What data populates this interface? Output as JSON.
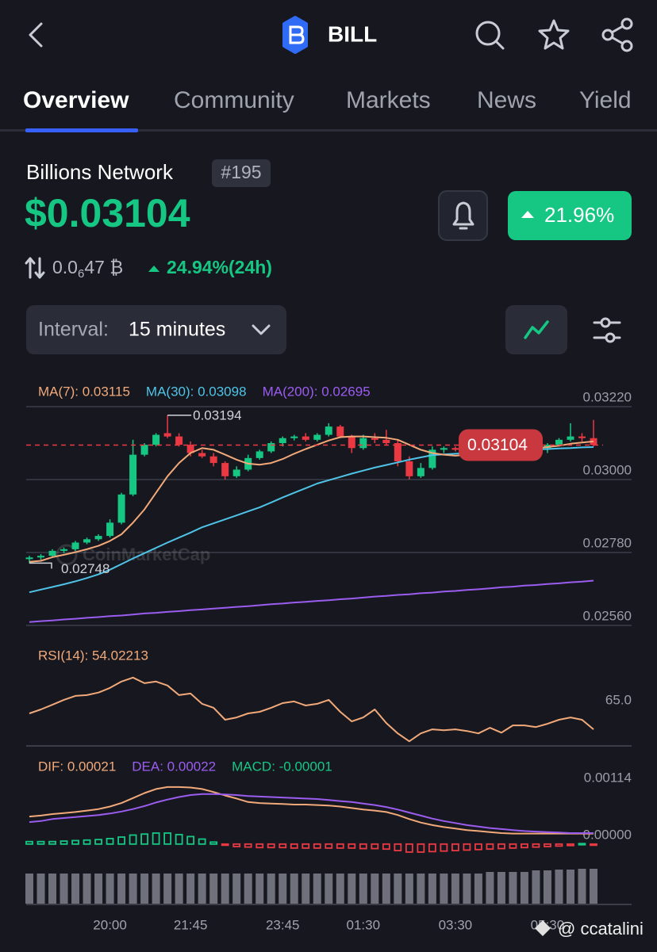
{
  "header": {
    "symbol": "BILL"
  },
  "tabs": [
    "Overview",
    "Community",
    "Markets",
    "News",
    "Yield"
  ],
  "coin": {
    "name": "Billions Network",
    "rank": "#195",
    "price": "$0.03104",
    "change_24h": "21.96%",
    "btc_price": {
      "lead": "0.0",
      "zero_count": "6",
      "tail": "47 ₿"
    },
    "btc_change": "24.94%(24h)"
  },
  "interval": {
    "label": "Interval:",
    "value": "15 minutes"
  },
  "watermark": "@ ccatalini",
  "chart_data": [
    {
      "type": "candlestick",
      "watermark": "CoinMarketCap",
      "up_color": "#16c784",
      "down_color": "#ea3943",
      "categories": [
        null,
        null,
        null,
        null,
        null,
        null,
        null,
        "20:00",
        null,
        null,
        null,
        null,
        null,
        null,
        "21:45",
        null,
        null,
        null,
        null,
        null,
        null,
        null,
        "23:45",
        null,
        null,
        null,
        null,
        null,
        null,
        "01:30",
        null,
        null,
        null,
        null,
        null,
        null,
        null,
        "03:30",
        null,
        null,
        null,
        null,
        null,
        null,
        null,
        "05:30",
        null,
        null,
        null,
        null
      ],
      "open": [
        0.0276,
        0.02765,
        0.0277,
        0.02785,
        0.0279,
        0.0281,
        0.0282,
        0.0283,
        0.0287,
        0.02955,
        0.03075,
        0.03105,
        0.0314,
        0.0313,
        0.03105,
        0.0308,
        0.0307,
        0.0305,
        0.0301,
        0.0303,
        0.03065,
        0.03085,
        0.0311,
        0.03125,
        0.0313,
        0.0312,
        0.03135,
        0.0316,
        0.0313,
        0.03095,
        0.03125,
        0.0312,
        0.0311,
        0.03055,
        0.0301,
        0.03035,
        0.0309,
        0.03095,
        0.0309,
        0.031,
        0.03105,
        0.0308,
        0.03095,
        0.031,
        0.03105,
        0.03095,
        0.03105,
        0.0312,
        0.0313,
        0.03125
      ],
      "high": [
        0.0277,
        0.02775,
        0.0279,
        0.02795,
        0.02815,
        0.02825,
        0.02835,
        0.0288,
        0.0296,
        0.0312,
        0.0311,
        0.0314,
        0.03194,
        0.0314,
        0.03115,
        0.0309,
        0.0308,
        0.03055,
        0.0304,
        0.03075,
        0.0309,
        0.03115,
        0.0313,
        0.03135,
        0.0314,
        0.0314,
        0.0317,
        0.03165,
        0.03135,
        0.03135,
        0.0314,
        0.0315,
        0.0312,
        0.0307,
        0.0305,
        0.031,
        0.031,
        0.031,
        0.03105,
        0.0311,
        0.0311,
        0.031,
        0.03105,
        0.0311,
        0.0311,
        0.0311,
        0.03125,
        0.0317,
        0.0314,
        0.0318
      ],
      "low": [
        0.02748,
        0.02758,
        0.02768,
        0.02778,
        0.02785,
        0.02805,
        0.02815,
        0.02825,
        0.02865,
        0.0295,
        0.0307,
        0.031,
        0.03125,
        0.031,
        0.0307,
        0.03065,
        0.0304,
        0.03,
        0.03005,
        0.03025,
        0.0306,
        0.0308,
        0.031,
        0.03118,
        0.03115,
        0.03115,
        0.0313,
        0.03125,
        0.0308,
        0.0309,
        0.0311,
        0.03105,
        0.0304,
        0.03,
        0.03005,
        0.0303,
        0.0308,
        0.03085,
        0.03085,
        0.03095,
        0.0306,
        0.03075,
        0.0309,
        0.03095,
        0.0309,
        0.0308,
        0.031,
        0.03115,
        0.03115,
        0.031
      ],
      "close": [
        0.02765,
        0.0277,
        0.02785,
        0.0279,
        0.0281,
        0.0282,
        0.0283,
        0.0287,
        0.02955,
        0.03075,
        0.03105,
        0.03135,
        0.0313,
        0.03105,
        0.0308,
        0.0307,
        0.0305,
        0.0301,
        0.0303,
        0.03065,
        0.03085,
        0.0311,
        0.03125,
        0.0313,
        0.0312,
        0.03135,
        0.0316,
        0.0313,
        0.03095,
        0.03125,
        0.0312,
        0.0311,
        0.03055,
        0.0301,
        0.03035,
        0.0309,
        0.03095,
        0.0309,
        0.031,
        0.03105,
        0.0308,
        0.03095,
        0.031,
        0.03105,
        0.03095,
        0.03105,
        0.0312,
        0.0313,
        0.03125,
        0.03104
      ],
      "series": [
        {
          "name": "MA(7): 0.03115",
          "color": "#f2a97a",
          "values": [
            0.02752,
            0.02755,
            0.02766,
            0.02773,
            0.02781,
            0.0279,
            0.028,
            0.02815,
            0.02835,
            0.0287,
            0.0291,
            0.0296,
            0.0301,
            0.0305,
            0.0308,
            0.03095,
            0.0309,
            0.03075,
            0.0306,
            0.03048,
            0.03045,
            0.0305,
            0.03062,
            0.03078,
            0.03092,
            0.03105,
            0.03118,
            0.03128,
            0.0313,
            0.0313,
            0.03128,
            0.03126,
            0.0312,
            0.03105,
            0.0309,
            0.0308,
            0.03075,
            0.03072,
            0.03075,
            0.0308,
            0.03085,
            0.03088,
            0.0309,
            0.03092,
            0.03095,
            0.03098,
            0.03102,
            0.03108,
            0.03112,
            0.03115
          ]
        },
        {
          "name": "MA(30): 0.03098",
          "color": "#4fc3e8",
          "values": [
            0.0266,
            0.02668,
            0.02676,
            0.02684,
            0.02693,
            0.02703,
            0.02714,
            0.02728,
            0.02745,
            0.02762,
            0.02778,
            0.02794,
            0.0281,
            0.02825,
            0.0284,
            0.02856,
            0.02868,
            0.0288,
            0.02892,
            0.02904,
            0.02916,
            0.02931,
            0.02946,
            0.0296,
            0.02974,
            0.02988,
            0.02998,
            0.03008,
            0.03018,
            0.03027,
            0.03036,
            0.03044,
            0.03052,
            0.0306,
            0.03067,
            0.03074,
            0.03076,
            0.03078,
            0.0308,
            0.03082,
            0.03084,
            0.03086,
            0.03088,
            0.0309,
            0.03091,
            0.03092,
            0.03094,
            0.03095,
            0.03097,
            0.03098
          ]
        },
        {
          "name": "MA(200): 0.02695",
          "color": "#9b5cf0",
          "values": [
            0.0257,
            0.02573,
            0.02575,
            0.02578,
            0.0258,
            0.02583,
            0.02585,
            0.02588,
            0.0259,
            0.02593,
            0.02596,
            0.02598,
            0.02601,
            0.02603,
            0.02606,
            0.02608,
            0.02611,
            0.02613,
            0.02616,
            0.02618,
            0.02621,
            0.02624,
            0.02626,
            0.02629,
            0.02631,
            0.02634,
            0.02636,
            0.02639,
            0.02641,
            0.02644,
            0.02647,
            0.02649,
            0.02652,
            0.02654,
            0.02657,
            0.02659,
            0.02662,
            0.02664,
            0.02667,
            0.02669,
            0.02672,
            0.02675,
            0.02677,
            0.0268,
            0.02682,
            0.02685,
            0.02687,
            0.0269,
            0.02692,
            0.02695
          ]
        }
      ],
      "current_price": 0.03104,
      "high_marker": 0.03194,
      "low_marker": 0.02748,
      "ylim": [
        0.0256,
        0.03275
      ],
      "yticks": [
        {
          "value": 0.0322,
          "label": "0.03220"
        },
        {
          "value": 0.03,
          "label": "0.03000"
        },
        {
          "value": 0.0278,
          "label": "0.02780"
        },
        {
          "value": 0.0256,
          "label": "0.02560"
        }
      ],
      "grid": true
    },
    {
      "type": "line",
      "series": [
        {
          "name": "RSI(14): 54.02213",
          "color": "#f2a97a",
          "values": [
            62.8,
            65,
            67.6,
            70.3,
            72.5,
            72.9,
            74.3,
            76.9,
            80.4,
            82.6,
            79.5,
            80.4,
            78.2,
            72.9,
            73.8,
            68.1,
            65.9,
            59.3,
            60.6,
            62.8,
            63.7,
            65.9,
            68.5,
            69.4,
            67.2,
            68.1,
            70.3,
            63.7,
            58.4,
            60.6,
            65,
            57.5,
            51.8,
            47.4,
            51.8,
            54,
            53.5,
            54,
            53.1,
            51.8,
            54.9,
            52.2,
            56.2,
            56.2,
            55.3,
            57.1,
            59.3,
            60.6,
            59.3,
            54.02
          ]
        }
      ],
      "ylim": [
        44,
        100
      ],
      "yticks": [
        {
          "value": 65,
          "label": "65.0"
        }
      ],
      "grid": false
    },
    {
      "type": "macd",
      "series": [
        {
          "name": "DIF: 0.00021",
          "color": "#f2a97a",
          "values": [
            0.00055,
            0.00057,
            0.0006,
            0.00062,
            0.00064,
            0.00067,
            0.0007,
            0.00075,
            0.00082,
            0.00092,
            0.00102,
            0.0011,
            0.00114,
            0.00114,
            0.00113,
            0.0011,
            0.00104,
            0.00097,
            0.00091,
            0.00084,
            0.00082,
            0.00081,
            0.0008,
            0.00079,
            0.00079,
            0.00078,
            0.00077,
            0.00075,
            0.00072,
            0.00069,
            0.00067,
            0.00064,
            0.00058,
            0.0005,
            0.00043,
            0.00038,
            0.00034,
            0.00031,
            0.00028,
            0.00026,
            0.00024,
            0.00022,
            0.00021,
            0.00021,
            0.00021,
            0.00021,
            0.00021,
            0.00021,
            0.00021,
            0.00021
          ]
        },
        {
          "name": "DEA: 0.00022",
          "color": "#9b5cf0",
          "values": [
            0.00044,
            0.00046,
            0.0005,
            0.00052,
            0.00054,
            0.00056,
            0.00058,
            0.00061,
            0.00065,
            0.0007,
            0.00076,
            0.00083,
            0.00089,
            0.00094,
            0.00098,
            0.001,
            0.001,
            0.00099,
            0.00098,
            0.00096,
            0.00095,
            0.00094,
            0.00093,
            0.00092,
            0.00091,
            0.0009,
            0.00088,
            0.00086,
            0.00084,
            0.00081,
            0.00078,
            0.00074,
            0.00069,
            0.00063,
            0.00057,
            0.00051,
            0.00046,
            0.00042,
            0.00038,
            0.00035,
            0.00032,
            0.0003,
            0.00028,
            0.00026,
            0.00025,
            0.00024,
            0.00023,
            0.00022,
            0.00022,
            0.00022
          ]
        },
        {
          "name": "MACD: -0.00001",
          "color": "#16c784",
          "negative_color": "#ea3943",
          "values": [
            5e-05,
            5e-05,
            5e-05,
            6e-05,
            7e-05,
            8e-05,
            9e-05,
            0.00011,
            0.00014,
            0.00018,
            0.0002,
            0.00022,
            0.00022,
            0.00019,
            0.00015,
            0.0001,
            4e-05,
            -2e-05,
            -5e-05,
            -6e-05,
            -7e-05,
            -7e-05,
            -7e-05,
            -8e-05,
            -8e-05,
            -8e-05,
            -8e-05,
            -8e-05,
            -8e-05,
            -9e-05,
            -9e-05,
            -0.0001,
            -0.00013,
            -0.00016,
            -0.00016,
            -0.00015,
            -0.00014,
            -0.00013,
            -0.00012,
            -0.00011,
            -0.0001,
            -9e-05,
            -8e-05,
            -7e-05,
            -6e-05,
            -5e-05,
            -4e-05,
            -3e-05,
            1e-05,
            -1e-05
          ]
        }
      ],
      "ylim": [
        -0.00024,
        0.00174
      ],
      "yticks": [
        0.00114,
        {
          "value": 0,
          "label": "0.00000"
        }
      ],
      "grid": false
    },
    {
      "type": "bar",
      "color": "#6e717b",
      "ylim": [
        0,
        50
      ],
      "values": [
        38,
        38,
        38,
        38,
        38,
        38,
        38,
        38,
        38,
        38,
        38,
        38,
        38,
        38,
        38,
        38,
        38,
        38,
        38,
        38,
        38,
        38,
        38,
        38,
        38,
        38,
        38,
        38,
        38,
        38,
        38,
        38,
        38,
        38,
        38,
        38,
        38,
        38,
        38,
        38,
        40,
        40,
        40,
        40,
        42,
        42,
        43,
        43,
        44,
        44
      ]
    }
  ]
}
